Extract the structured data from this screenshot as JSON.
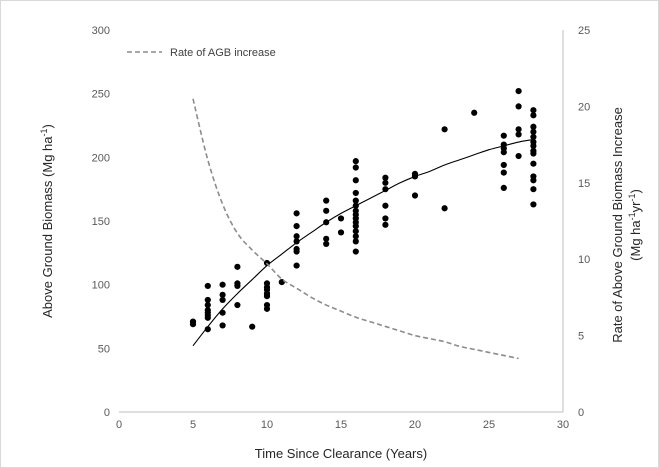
{
  "chart_data": {
    "type": "scatter",
    "xlabel": "Time Since Clearance (Years)",
    "ylabel": "Above Ground Biomass (Mg ha-1)",
    "ylabel_parts": [
      "Above Ground Biomass (Mg ha",
      "-1",
      ")"
    ],
    "y2label_line1": "Rate of Above Ground Biomass Increase",
    "y2label_line2_parts": [
      "(Mg ha",
      "-1",
      "yr",
      "-1",
      ")"
    ],
    "xlim": [
      0,
      30
    ],
    "ylim": [
      0,
      300
    ],
    "y2lim": [
      0,
      25
    ],
    "x_ticks": [
      0,
      5,
      10,
      15,
      20,
      25,
      30
    ],
    "y_ticks": [
      0,
      50,
      100,
      150,
      200,
      250,
      300
    ],
    "y2_ticks": [
      0,
      5,
      10,
      15,
      20,
      25
    ],
    "grid": false,
    "legend_position": "top-left",
    "series": [
      {
        "type": "scatter",
        "color": "#000000",
        "points": [
          [
            5,
            69
          ],
          [
            5,
            71
          ],
          [
            6,
            99
          ],
          [
            6,
            88
          ],
          [
            6,
            84
          ],
          [
            6,
            80
          ],
          [
            6,
            78
          ],
          [
            6,
            76
          ],
          [
            6,
            74
          ],
          [
            6,
            65
          ],
          [
            7,
            100
          ],
          [
            7,
            92
          ],
          [
            7,
            88
          ],
          [
            7,
            78
          ],
          [
            7,
            68
          ],
          [
            8,
            114
          ],
          [
            8,
            101
          ],
          [
            8,
            99
          ],
          [
            8,
            84
          ],
          [
            9,
            67
          ],
          [
            10,
            117
          ],
          [
            10,
            101
          ],
          [
            10,
            98
          ],
          [
            10,
            96
          ],
          [
            10,
            93
          ],
          [
            10,
            91
          ],
          [
            10,
            84
          ],
          [
            10,
            81
          ],
          [
            11,
            102
          ],
          [
            12,
            156
          ],
          [
            12,
            146
          ],
          [
            12,
            138
          ],
          [
            12,
            134
          ],
          [
            12,
            128
          ],
          [
            12,
            126
          ],
          [
            12,
            115
          ],
          [
            14,
            166
          ],
          [
            14,
            158
          ],
          [
            14,
            149
          ],
          [
            14,
            136
          ],
          [
            14,
            132
          ],
          [
            15,
            152
          ],
          [
            15,
            141
          ],
          [
            16,
            197
          ],
          [
            16,
            192
          ],
          [
            16,
            182
          ],
          [
            16,
            172
          ],
          [
            16,
            166
          ],
          [
            16,
            162
          ],
          [
            16,
            158
          ],
          [
            16,
            155
          ],
          [
            16,
            152
          ],
          [
            16,
            149
          ],
          [
            16,
            146
          ],
          [
            16,
            142
          ],
          [
            16,
            138
          ],
          [
            16,
            134
          ],
          [
            16,
            126
          ],
          [
            18,
            184
          ],
          [
            18,
            180
          ],
          [
            18,
            175
          ],
          [
            18,
            162
          ],
          [
            18,
            152
          ],
          [
            18,
            147
          ],
          [
            20,
            187
          ],
          [
            20,
            185
          ],
          [
            20,
            170
          ],
          [
            22,
            222
          ],
          [
            22,
            160
          ],
          [
            24,
            235
          ],
          [
            26,
            217
          ],
          [
            26,
            210
          ],
          [
            26,
            207
          ],
          [
            26,
            204
          ],
          [
            26,
            194
          ],
          [
            26,
            188
          ],
          [
            26,
            176
          ],
          [
            27,
            252
          ],
          [
            27,
            240
          ],
          [
            27,
            222
          ],
          [
            27,
            218
          ],
          [
            27,
            201
          ],
          [
            28,
            237
          ],
          [
            28,
            233
          ],
          [
            28,
            224
          ],
          [
            28,
            220
          ],
          [
            28,
            216
          ],
          [
            28,
            212
          ],
          [
            28,
            209
          ],
          [
            28,
            205
          ],
          [
            28,
            203
          ],
          [
            28,
            195
          ],
          [
            28,
            185
          ],
          [
            28,
            182
          ],
          [
            28,
            175
          ],
          [
            28,
            163
          ]
        ]
      },
      {
        "type": "line",
        "style": "solid",
        "color": "#000000",
        "axis": "left",
        "x": [
          5,
          6,
          7,
          8,
          9,
          10,
          11,
          12,
          13,
          14,
          15,
          16,
          17,
          18,
          19,
          20,
          21,
          22,
          23,
          24,
          25,
          26,
          27,
          28
        ],
        "y": [
          52,
          67,
          81,
          93,
          104,
          115,
          124,
          133,
          141,
          149,
          156,
          162,
          168,
          174,
          180,
          185,
          189,
          194,
          198,
          202,
          206,
          209,
          212,
          214
        ]
      },
      {
        "type": "line",
        "style": "dashed",
        "name": "Rate of AGB increase",
        "color": "#8c8c8c",
        "axis": "right",
        "x": [
          5,
          6,
          7,
          8,
          9,
          10,
          11,
          12,
          13,
          14,
          15,
          16,
          17,
          18,
          19,
          20,
          21,
          22,
          23,
          24,
          25,
          26,
          27
        ],
        "y": [
          20.5,
          16.5,
          13.6,
          11.7,
          10.6,
          9.7,
          8.7,
          8.1,
          7.5,
          7.0,
          6.6,
          6.2,
          5.9,
          5.6,
          5.3,
          5.0,
          4.8,
          4.6,
          4.3,
          4.1,
          3.9,
          3.7,
          3.5
        ]
      }
    ],
    "legend": [
      {
        "label": "Rate of AGB increase",
        "style": "dashed",
        "color": "#8c8c8c"
      }
    ]
  }
}
